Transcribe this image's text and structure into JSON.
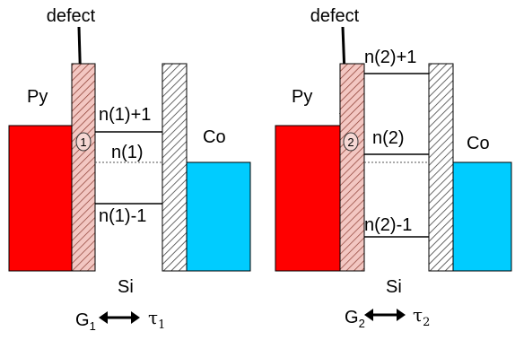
{
  "left": {
    "defect_label": "defect",
    "defect_marker": "1",
    "py_label": "Py",
    "co_label": "Co",
    "si_label": "Si",
    "level_upper": "n(1)+1",
    "level_middle": "n(1)",
    "level_lower": "n(1)-1",
    "g_symbol": "G",
    "g_subscript": "1",
    "tau_symbol": "τ",
    "tau_subscript": "1"
  },
  "right": {
    "defect_label": "defect",
    "defect_marker": "2",
    "py_label": "Py",
    "co_label": "Co",
    "si_label": "Si",
    "level_upper": "n(2)+1",
    "level_middle": "n(2)",
    "level_lower": "n(2)-1",
    "g_symbol": "G",
    "g_subscript": "2",
    "tau_symbol": "τ",
    "tau_subscript": "2"
  },
  "colors": {
    "py": "#ff0000",
    "co": "#00ccff",
    "barrier_py_side": "#f3c7c2",
    "hatch": "#555555",
    "level_line": "#000000"
  }
}
